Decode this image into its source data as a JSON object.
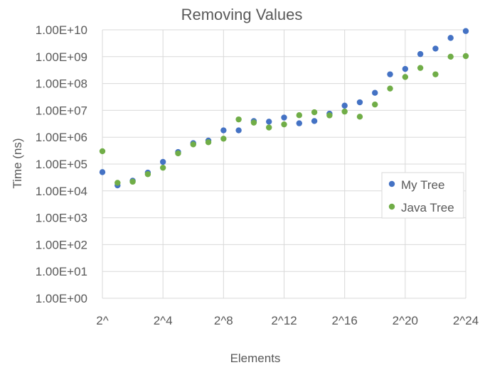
{
  "chart_data": {
    "type": "scatter",
    "title": "Removing Values",
    "xlabel": "Elements",
    "ylabel": "Time (ns)",
    "y_scale": "log10",
    "ylim": [
      1,
      10000000000
    ],
    "y_ticks": [
      "1.00E+00",
      "1.00E+01",
      "1.00E+02",
      "1.00E+03",
      "1.00E+04",
      "1.00E+05",
      "1.00E+06",
      "1.00E+07",
      "1.00E+08",
      "1.00E+09",
      "1.00E+10"
    ],
    "x_note": "x values are the power-of-two exponent; 2^0 .. 2^24",
    "xlim": [
      0,
      24
    ],
    "x_ticks": [
      {
        "x": 0,
        "label": "2^"
      },
      {
        "x": 4,
        "label": "2^4"
      },
      {
        "x": 8,
        "label": "2^8"
      },
      {
        "x": 12,
        "label": "2^12"
      },
      {
        "x": 16,
        "label": "2^16"
      },
      {
        "x": 20,
        "label": "2^20"
      },
      {
        "x": 24,
        "label": "2^24"
      }
    ],
    "grid": true,
    "legend_position": "right",
    "series": [
      {
        "name": "My Tree",
        "color": "#4472C4",
        "x": [
          0,
          1,
          2,
          3,
          4,
          5,
          6,
          7,
          8,
          9,
          10,
          11,
          12,
          13,
          14,
          15,
          16,
          17,
          18,
          19,
          20,
          21,
          22,
          23,
          24
        ],
        "y": [
          50000,
          16000,
          24000,
          48000,
          120000,
          280000,
          600000,
          750000,
          1800000,
          1800000,
          4000000,
          3800000,
          5400000,
          3300000,
          4000000,
          7500000,
          15000000,
          20000000,
          45000000,
          220000000,
          350000000,
          1250000000,
          2000000000,
          5000000000,
          9000000000
        ]
      },
      {
        "name": "Java Tree",
        "color": "#70AD47",
        "x": [
          0,
          1,
          2,
          3,
          4,
          5,
          6,
          7,
          8,
          9,
          10,
          11,
          12,
          13,
          14,
          15,
          16,
          17,
          18,
          19,
          20,
          21,
          22,
          23,
          24
        ],
        "y": [
          300000,
          20000,
          22000,
          42000,
          73000,
          250000,
          540000,
          650000,
          880000,
          4600000,
          3500000,
          2300000,
          3000000,
          6600000,
          8500000,
          6500000,
          9000000,
          5800000,
          16500000,
          65000000,
          175000000,
          380000000,
          220000000,
          1000000000,
          1050000000
        ]
      }
    ]
  }
}
